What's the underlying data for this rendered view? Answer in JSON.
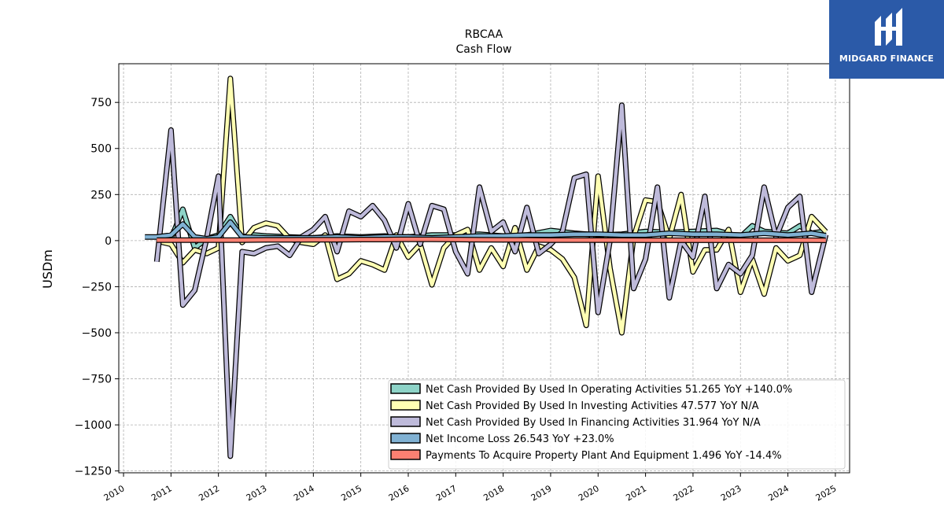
{
  "logo": {
    "text": "MIDGARD FINANCE",
    "bg_color": "#2b5aa8"
  },
  "chart_data": {
    "type": "line",
    "title": "RBCAA",
    "subtitle": "Cash Flow",
    "ylabel": "USDm",
    "xlabel": "",
    "xlim": [
      2009.9,
      2025.3
    ],
    "ylim": [
      -1260,
      960
    ],
    "yticks": [
      750,
      500,
      250,
      0,
      -250,
      -500,
      -750,
      -1000,
      -1250
    ],
    "ytick_labels": [
      "750",
      "500",
      "250",
      "0",
      "−250",
      "−500",
      "−750",
      "−1000",
      "−1250"
    ],
    "xticks": [
      2010,
      2011,
      2012,
      2013,
      2014,
      2015,
      2016,
      2017,
      2018,
      2019,
      2020,
      2021,
      2022,
      2023,
      2024,
      2025
    ],
    "xtick_labels": [
      "2010",
      "2011",
      "2012",
      "2013",
      "2014",
      "2015",
      "2016",
      "2017",
      "2018",
      "2019",
      "2020",
      "2021",
      "2022",
      "2023",
      "2024",
      "2025"
    ],
    "grid": true,
    "legend_position": "lower-right",
    "series": [
      {
        "name": "Net Cash Provided By Used In Operating Activities  51.265 YoY +140.0%",
        "color": "#8dd3c7",
        "points": [
          [
            2010.7,
            0
          ],
          [
            2011.0,
            10
          ],
          [
            2011.25,
            170
          ],
          [
            2011.5,
            -40
          ],
          [
            2011.75,
            10
          ],
          [
            2012.0,
            30
          ],
          [
            2012.25,
            130
          ],
          [
            2012.5,
            20
          ],
          [
            2012.75,
            30
          ],
          [
            2013.0,
            25
          ],
          [
            2013.5,
            20
          ],
          [
            2014.0,
            15
          ],
          [
            2014.5,
            25
          ],
          [
            2015.0,
            20
          ],
          [
            2015.5,
            25
          ],
          [
            2016.0,
            20
          ],
          [
            2016.5,
            30
          ],
          [
            2017.0,
            30
          ],
          [
            2017.5,
            35
          ],
          [
            2018.0,
            25
          ],
          [
            2018.5,
            30
          ],
          [
            2019.0,
            55
          ],
          [
            2019.5,
            40
          ],
          [
            2020.0,
            30
          ],
          [
            2020.5,
            35
          ],
          [
            2021.0,
            50
          ],
          [
            2021.5,
            45
          ],
          [
            2022.0,
            50
          ],
          [
            2022.5,
            55
          ],
          [
            2023.0,
            20
          ],
          [
            2023.25,
            80
          ],
          [
            2023.5,
            50
          ],
          [
            2024.0,
            40
          ],
          [
            2024.25,
            80
          ],
          [
            2024.5,
            40
          ],
          [
            2024.8,
            51.265
          ]
        ]
      },
      {
        "name": "Net Cash Provided By Used In Investing Activities  47.577 YoY N/A",
        "color": "#ffffb3",
        "points": [
          [
            2010.75,
            -5
          ],
          [
            2011.0,
            -20
          ],
          [
            2011.25,
            -120
          ],
          [
            2011.5,
            -50
          ],
          [
            2011.75,
            -70
          ],
          [
            2012.0,
            -40
          ],
          [
            2012.25,
            880
          ],
          [
            2012.5,
            -10
          ],
          [
            2012.75,
            70
          ],
          [
            2013.0,
            95
          ],
          [
            2013.25,
            80
          ],
          [
            2013.5,
            10
          ],
          [
            2013.75,
            -10
          ],
          [
            2014.0,
            -20
          ],
          [
            2014.25,
            30
          ],
          [
            2014.5,
            -210
          ],
          [
            2014.75,
            -180
          ],
          [
            2015.0,
            -110
          ],
          [
            2015.25,
            -130
          ],
          [
            2015.5,
            -160
          ],
          [
            2015.75,
            30
          ],
          [
            2016.0,
            -90
          ],
          [
            2016.25,
            -20
          ],
          [
            2016.5,
            -240
          ],
          [
            2016.75,
            -40
          ],
          [
            2017.0,
            30
          ],
          [
            2017.25,
            60
          ],
          [
            2017.5,
            -160
          ],
          [
            2017.75,
            -40
          ],
          [
            2018.0,
            -140
          ],
          [
            2018.25,
            70
          ],
          [
            2018.5,
            -160
          ],
          [
            2018.75,
            -30
          ],
          [
            2019.0,
            -50
          ],
          [
            2019.25,
            -100
          ],
          [
            2019.5,
            -200
          ],
          [
            2019.75,
            -460
          ],
          [
            2020.0,
            350
          ],
          [
            2020.25,
            -150
          ],
          [
            2020.5,
            -500
          ],
          [
            2020.75,
            20
          ],
          [
            2021.0,
            220
          ],
          [
            2021.25,
            210
          ],
          [
            2021.5,
            10
          ],
          [
            2021.75,
            250
          ],
          [
            2022.0,
            -170
          ],
          [
            2022.25,
            -50
          ],
          [
            2022.5,
            -50
          ],
          [
            2022.75,
            60
          ],
          [
            2023.0,
            -280
          ],
          [
            2023.25,
            -100
          ],
          [
            2023.5,
            -290
          ],
          [
            2023.75,
            -40
          ],
          [
            2024.0,
            -110
          ],
          [
            2024.25,
            -80
          ],
          [
            2024.5,
            130
          ],
          [
            2024.8,
            47.577
          ]
        ]
      },
      {
        "name": "Net Cash Provided By Used In Financing Activities  31.964 YoY N/A",
        "color": "#bebada",
        "points": [
          [
            2010.7,
            -115
          ],
          [
            2011.0,
            600
          ],
          [
            2011.25,
            -350
          ],
          [
            2011.5,
            -270
          ],
          [
            2011.75,
            10
          ],
          [
            2012.0,
            350
          ],
          [
            2012.25,
            -1170
          ],
          [
            2012.5,
            -60
          ],
          [
            2012.75,
            -70
          ],
          [
            2013.0,
            -40
          ],
          [
            2013.25,
            -30
          ],
          [
            2013.5,
            -80
          ],
          [
            2013.75,
            20
          ],
          [
            2014.0,
            60
          ],
          [
            2014.25,
            130
          ],
          [
            2014.5,
            -60
          ],
          [
            2014.75,
            160
          ],
          [
            2015.0,
            130
          ],
          [
            2015.25,
            190
          ],
          [
            2015.5,
            110
          ],
          [
            2015.75,
            -40
          ],
          [
            2016.0,
            200
          ],
          [
            2016.25,
            -20
          ],
          [
            2016.5,
            190
          ],
          [
            2016.75,
            170
          ],
          [
            2017.0,
            -60
          ],
          [
            2017.25,
            -180
          ],
          [
            2017.5,
            290
          ],
          [
            2017.75,
            50
          ],
          [
            2018.0,
            100
          ],
          [
            2018.25,
            -60
          ],
          [
            2018.5,
            180
          ],
          [
            2018.75,
            -70
          ],
          [
            2019.0,
            -20
          ],
          [
            2019.25,
            50
          ],
          [
            2019.5,
            340
          ],
          [
            2019.75,
            360
          ],
          [
            2020.0,
            -390
          ],
          [
            2020.25,
            0
          ],
          [
            2020.5,
            735
          ],
          [
            2020.75,
            -260
          ],
          [
            2021.0,
            -100
          ],
          [
            2021.25,
            290
          ],
          [
            2021.5,
            -310
          ],
          [
            2021.75,
            0
          ],
          [
            2022.0,
            -90
          ],
          [
            2022.25,
            240
          ],
          [
            2022.5,
            -260
          ],
          [
            2022.75,
            -130
          ],
          [
            2023.0,
            -180
          ],
          [
            2023.25,
            -80
          ],
          [
            2023.5,
            290
          ],
          [
            2023.75,
            20
          ],
          [
            2024.0,
            180
          ],
          [
            2024.25,
            240
          ],
          [
            2024.5,
            -280
          ],
          [
            2024.8,
            31.964
          ]
        ]
      },
      {
        "name": "Net Income Loss  26.543 YoY +23.0%",
        "color": "#80b1d3",
        "points": [
          [
            2010.45,
            20
          ],
          [
            2010.7,
            20
          ],
          [
            2011.0,
            30
          ],
          [
            2011.25,
            90
          ],
          [
            2011.5,
            20
          ],
          [
            2011.75,
            10
          ],
          [
            2012.0,
            20
          ],
          [
            2012.25,
            100
          ],
          [
            2012.5,
            20
          ],
          [
            2013.0,
            15
          ],
          [
            2013.5,
            15
          ],
          [
            2014.0,
            15
          ],
          [
            2014.5,
            20
          ],
          [
            2015.0,
            15
          ],
          [
            2015.5,
            20
          ],
          [
            2016.0,
            20
          ],
          [
            2016.5,
            15
          ],
          [
            2017.0,
            20
          ],
          [
            2017.5,
            25
          ],
          [
            2018.0,
            25
          ],
          [
            2018.5,
            30
          ],
          [
            2019.0,
            30
          ],
          [
            2019.5,
            35
          ],
          [
            2020.0,
            35
          ],
          [
            2020.5,
            30
          ],
          [
            2021.0,
            30
          ],
          [
            2021.5,
            40
          ],
          [
            2022.0,
            35
          ],
          [
            2022.5,
            35
          ],
          [
            2023.0,
            30
          ],
          [
            2023.5,
            40
          ],
          [
            2024.0,
            30
          ],
          [
            2024.5,
            40
          ],
          [
            2024.8,
            26.543
          ]
        ]
      },
      {
        "name": "Payments To Acquire Property Plant And Equipment  1.496 YoY -14.4%",
        "color": "#fb8072",
        "points": [
          [
            2010.7,
            3
          ],
          [
            2011.0,
            3
          ],
          [
            2011.5,
            3
          ],
          [
            2012.0,
            3
          ],
          [
            2012.5,
            3
          ],
          [
            2013.0,
            4
          ],
          [
            2013.5,
            4
          ],
          [
            2014.0,
            5
          ],
          [
            2014.5,
            5
          ],
          [
            2015.0,
            6
          ],
          [
            2015.5,
            6
          ],
          [
            2016.0,
            7
          ],
          [
            2016.5,
            7
          ],
          [
            2017.0,
            6
          ],
          [
            2017.5,
            5
          ],
          [
            2018.0,
            4
          ],
          [
            2018.5,
            4
          ],
          [
            2019.0,
            3
          ],
          [
            2019.5,
            3
          ],
          [
            2020.0,
            3
          ],
          [
            2020.5,
            3
          ],
          [
            2021.0,
            2
          ],
          [
            2021.5,
            2
          ],
          [
            2022.0,
            2
          ],
          [
            2022.5,
            2
          ],
          [
            2023.0,
            2
          ],
          [
            2023.5,
            2
          ],
          [
            2024.0,
            2
          ],
          [
            2024.5,
            2
          ],
          [
            2024.8,
            1.496
          ]
        ]
      }
    ]
  }
}
